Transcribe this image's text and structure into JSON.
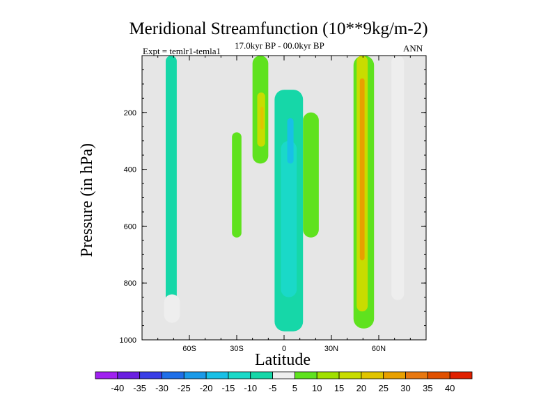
{
  "chart_data": {
    "type": "heatmap",
    "title": "Meridional Streamfunction (10**9kg/m-2)",
    "subtitle": "17.0kyr BP - 00.0kyr BP",
    "left_annotation": "Expt = temlr1-temla1",
    "right_annotation": "ANN",
    "xlabel": "Latitude",
    "ylabel": "Pressure (in hPa)",
    "x_range": [
      -90,
      90
    ],
    "y_range": [
      0,
      1000
    ],
    "y_inverted": true,
    "x_ticks": [
      {
        "value": -60,
        "label": "60S"
      },
      {
        "value": -30,
        "label": "30S"
      },
      {
        "value": 0,
        "label": "0"
      },
      {
        "value": 30,
        "label": "30N"
      },
      {
        "value": 60,
        "label": "60N"
      }
    ],
    "y_ticks": [
      {
        "value": 200,
        "label": "200"
      },
      {
        "value": 400,
        "label": "400"
      },
      {
        "value": 600,
        "label": "600"
      },
      {
        "value": 800,
        "label": "800"
      },
      {
        "value": 1000,
        "label": "1000"
      }
    ],
    "background_color": "#e6e6e6",
    "colorbar": {
      "boundaries": [
        -40,
        -35,
        -30,
        -25,
        -20,
        -15,
        -10,
        -5,
        5,
        10,
        15,
        20,
        25,
        30,
        35,
        40
      ],
      "labels": [
        "-40",
        "-35",
        "-30",
        "-25",
        "-20",
        "-15",
        "-10",
        "-5",
        "5",
        "10",
        "15",
        "20",
        "25",
        "30",
        "35",
        "40"
      ],
      "colors": [
        "#a020f0",
        "#6a1fe0",
        "#3a3ee6",
        "#1f6fe8",
        "#1a9ae8",
        "#18c0e6",
        "#1ad9c8",
        "#16d7a8",
        "#eeeeee",
        "#5fe21e",
        "#a0e000",
        "#c8dc00",
        "#e0c400",
        "#e8a000",
        "#e87810",
        "#e05000",
        "#e02000"
      ]
    },
    "regions": [
      {
        "name": "negative-column-60s",
        "level": "-10",
        "lat": [
          -75,
          -68
        ],
        "p": [
          0,
          935
        ]
      },
      {
        "name": "negative-column-60s-tail",
        "level": "-5",
        "lat": [
          -76,
          -66
        ],
        "p": [
          840,
          940
        ]
      },
      {
        "name": "negative-equatorial-cell",
        "level": "-10",
        "lat": [
          -6,
          12
        ],
        "p": [
          120,
          970
        ]
      },
      {
        "name": "negative-equatorial-core",
        "level": "-15",
        "lat": [
          -2,
          8
        ],
        "p": [
          300,
          850
        ]
      },
      {
        "name": "negative-equatorial-max",
        "level": "-20",
        "lat": [
          2,
          6
        ],
        "p": [
          220,
          380
        ]
      },
      {
        "name": "negative-column-70n",
        "level": "-5",
        "lat": [
          68,
          76
        ],
        "p": [
          0,
          860
        ]
      },
      {
        "name": "positive-column-20s",
        "level": "5",
        "lat": [
          -20,
          -10
        ],
        "p": [
          0,
          380
        ]
      },
      {
        "name": "positive-column-20s-core",
        "level": "15",
        "lat": [
          -17,
          -12
        ],
        "p": [
          130,
          320
        ]
      },
      {
        "name": "positive-column-20s-max",
        "level": "20",
        "lat": [
          -15,
          -13
        ],
        "p": [
          180,
          260
        ]
      },
      {
        "name": "positive-column-30s",
        "level": "5",
        "lat": [
          -33,
          -27
        ],
        "p": [
          270,
          640
        ]
      },
      {
        "name": "positive-column-10n",
        "level": "5",
        "lat": [
          12,
          22
        ],
        "p": [
          200,
          640
        ]
      },
      {
        "name": "positive-column-45n",
        "level": "5",
        "lat": [
          44,
          57
        ],
        "p": [
          0,
          960
        ]
      },
      {
        "name": "positive-column-45n-mid",
        "level": "15",
        "lat": [
          46,
          53
        ],
        "p": [
          0,
          900
        ]
      },
      {
        "name": "positive-column-45n-core",
        "level": "25",
        "lat": [
          48,
          51
        ],
        "p": [
          80,
          720
        ]
      }
    ]
  }
}
